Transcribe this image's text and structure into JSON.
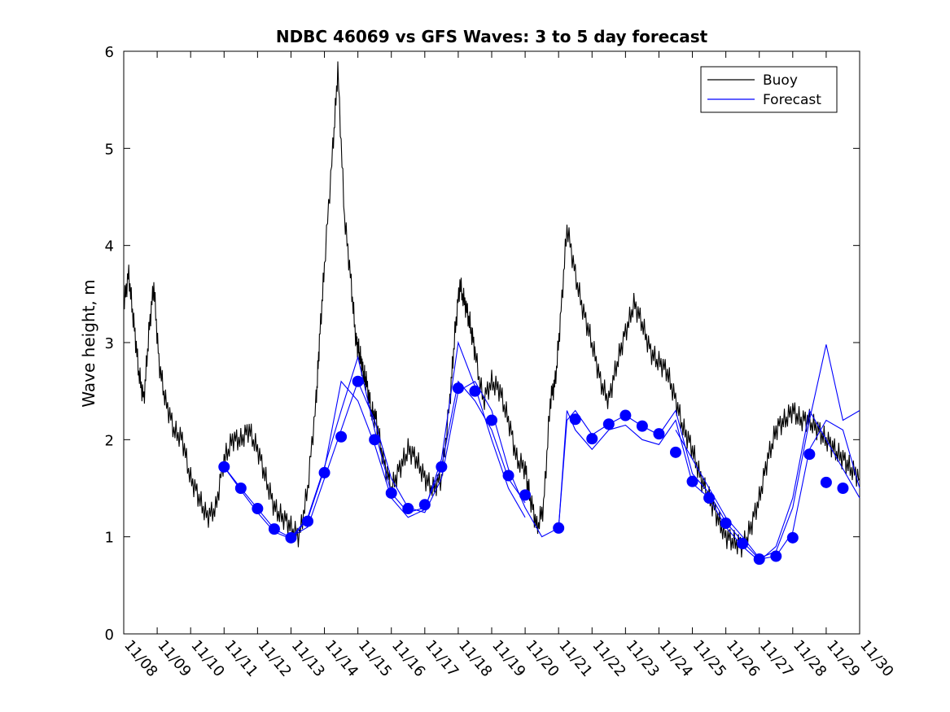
{
  "chart_data": {
    "type": "line",
    "title": "NDBC 46069 vs GFS Waves: 3 to 5 day forecast",
    "xlabel": "",
    "ylabel": "Wave height, m",
    "xlim": [
      0,
      22
    ],
    "ylim": [
      0,
      6
    ],
    "grid": false,
    "legend_location": "top-right",
    "x_tick_labels": [
      "11/08",
      "11/09",
      "11/10",
      "11/11",
      "11/12",
      "11/13",
      "11/14",
      "11/15",
      "11/16",
      "11/17",
      "11/18",
      "11/19",
      "11/20",
      "11/21",
      "11/22",
      "11/23",
      "11/24",
      "11/25",
      "11/26",
      "11/27",
      "11/28",
      "11/29",
      "11/30"
    ],
    "y_ticks": [
      0,
      1,
      2,
      3,
      4,
      5,
      6
    ],
    "colors": {
      "buoy": "#000000",
      "forecast": "#0000ff"
    },
    "series": [
      {
        "name": "Buoy",
        "x": [
          0.0,
          0.15,
          0.3,
          0.45,
          0.6,
          0.75,
          0.9,
          1.05,
          1.25,
          1.5,
          1.75,
          2.0,
          2.25,
          2.5,
          2.75,
          3.0,
          3.25,
          3.5,
          3.75,
          4.0,
          4.25,
          4.5,
          4.75,
          5.0,
          5.25,
          5.5,
          5.75,
          5.85,
          6.0,
          6.25,
          6.4,
          6.6,
          6.8,
          6.95,
          7.05,
          7.15,
          7.25,
          7.4,
          7.55,
          7.75,
          8.0,
          8.25,
          8.5,
          8.75,
          9.0,
          9.25,
          9.5,
          9.75,
          9.9,
          10.05,
          10.2,
          10.35,
          10.5,
          10.75,
          11.0,
          11.25,
          11.5,
          11.75,
          12.0,
          12.15,
          12.35,
          12.55,
          12.75,
          12.9,
          13.05,
          13.25,
          13.5,
          13.75,
          14.0,
          14.25,
          14.5,
          14.75,
          15.0,
          15.25,
          15.5,
          15.75,
          16.0,
          16.25,
          16.5,
          16.75,
          17.0,
          17.25,
          17.5,
          17.75,
          18.0,
          18.25,
          18.5,
          18.75,
          19.0,
          19.25,
          19.5,
          19.75,
          20.0,
          20.25,
          20.5,
          20.75,
          21.0,
          21.25,
          21.5,
          21.75,
          22.0
        ],
        "values": [
          3.4,
          3.7,
          3.2,
          2.7,
          2.4,
          3.1,
          3.6,
          2.8,
          2.4,
          2.1,
          2.0,
          1.6,
          1.4,
          1.2,
          1.3,
          1.8,
          2.0,
          2.0,
          2.1,
          1.9,
          1.6,
          1.3,
          1.2,
          1.1,
          1.0,
          1.5,
          2.4,
          3.0,
          3.8,
          5.0,
          5.8,
          4.3,
          3.6,
          3.0,
          2.9,
          2.7,
          2.6,
          2.3,
          2.2,
          1.8,
          1.5,
          1.7,
          1.9,
          1.8,
          1.6,
          1.5,
          1.6,
          2.4,
          3.1,
          3.6,
          3.4,
          3.2,
          2.9,
          2.4,
          2.6,
          2.5,
          2.2,
          1.8,
          1.7,
          1.4,
          1.1,
          1.3,
          2.4,
          2.6,
          3.2,
          4.2,
          3.7,
          3.3,
          3.0,
          2.6,
          2.4,
          2.8,
          3.1,
          3.4,
          3.2,
          2.9,
          2.8,
          2.7,
          2.4,
          2.1,
          1.9,
          1.6,
          1.4,
          1.2,
          1.0,
          0.95,
          0.9,
          1.1,
          1.4,
          1.8,
          2.1,
          2.2,
          2.3,
          2.2,
          2.2,
          2.1,
          2.0,
          1.9,
          1.8,
          1.7,
          1.6
        ]
      },
      {
        "name": "Forecast",
        "markers_x": [
          3.0,
          3.5,
          4.0,
          4.5,
          5.0,
          5.5,
          6.0,
          6.5,
          7.0,
          7.5,
          8.0,
          8.5,
          9.0,
          9.5,
          10.0,
          10.5,
          11.0,
          11.5,
          12.0,
          13.0,
          13.5,
          14.0,
          14.5,
          15.0,
          15.5,
          16.0,
          16.5,
          17.0,
          17.5,
          18.0,
          18.5,
          19.0,
          19.5,
          20.0,
          20.5,
          21.0,
          21.5
        ],
        "marker_values": [
          1.72,
          1.5,
          1.29,
          1.08,
          0.99,
          1.16,
          1.66,
          2.03,
          2.6,
          2.0,
          1.45,
          1.29,
          1.33,
          1.72,
          2.53,
          2.5,
          2.2,
          1.63,
          1.43,
          1.09,
          2.21,
          2.01,
          2.16,
          2.25,
          2.14,
          2.06,
          1.87,
          1.57,
          1.4,
          1.14,
          0.93,
          0.77,
          0.8,
          0.99,
          1.85,
          1.56,
          1.5
        ],
        "runs": [
          {
            "x": [
              3.0,
              3.5,
              4.0,
              4.5,
              5.0,
              5.5,
              6.0,
              6.5,
              7.0,
              7.5,
              8.0,
              8.5,
              9.0,
              9.5,
              10.0,
              10.5,
              11.0,
              11.5,
              12.0
            ],
            "values": [
              1.72,
              1.5,
              1.29,
              1.08,
              0.99,
              1.2,
              1.72,
              2.3,
              2.85,
              2.1,
              1.45,
              1.25,
              1.3,
              1.72,
              2.6,
              2.4,
              2.1,
              1.6,
              1.35
            ]
          },
          {
            "x": [
              3.0,
              3.5,
              4.0,
              4.5,
              5.0,
              5.5,
              6.0,
              6.5,
              7.0,
              7.5,
              8.0,
              8.5,
              9.0,
              9.5,
              10.0,
              10.5,
              11.0,
              11.5,
              12.0
            ],
            "values": [
              1.72,
              1.48,
              1.25,
              1.05,
              0.98,
              1.18,
              1.7,
              2.6,
              2.4,
              1.95,
              1.4,
              1.2,
              1.28,
              1.8,
              3.0,
              2.55,
              2.0,
              1.5,
              1.2
            ]
          },
          {
            "x": [
              5.0,
              5.5,
              6.0,
              6.5,
              7.0,
              7.5,
              8.0,
              8.5,
              9.0,
              9.5,
              10.0,
              10.5,
              11.0,
              11.5,
              12.0,
              12.5,
              13.0
            ],
            "values": [
              1.0,
              1.1,
              1.6,
              2.1,
              2.6,
              2.2,
              1.6,
              1.3,
              1.25,
              1.6,
              2.5,
              2.6,
              2.3,
              1.7,
              1.3,
              1.0,
              1.09
            ]
          },
          {
            "x": [
              13.0,
              13.25,
              13.5,
              14.0,
              14.5,
              15.0,
              15.5,
              16.0,
              16.5,
              17.0,
              17.5,
              18.0,
              18.5,
              19.0,
              19.5,
              20.0,
              20.5,
              21.0,
              21.5,
              22.0
            ],
            "values": [
              1.09,
              2.2,
              2.3,
              2.05,
              2.16,
              2.25,
              2.14,
              2.05,
              2.3,
              1.65,
              1.45,
              1.15,
              0.95,
              0.77,
              0.8,
              1.05,
              1.9,
              2.2,
              2.1,
              1.5
            ]
          },
          {
            "x": [
              13.0,
              13.25,
              13.5,
              14.0,
              14.5,
              15.0,
              15.5,
              16.0,
              16.5,
              17.0,
              17.5,
              18.0,
              18.5,
              19.0,
              19.5,
              20.0,
              20.5,
              21.0,
              21.5,
              22.0
            ],
            "values": [
              1.09,
              2.3,
              2.1,
              1.9,
              2.1,
              2.15,
              2.0,
              1.95,
              2.2,
              1.55,
              1.4,
              1.1,
              0.9,
              0.75,
              0.9,
              1.4,
              2.3,
              2.0,
              1.7,
              1.4
            ]
          },
          {
            "x": [
              16.5,
              17.0,
              17.5,
              18.0,
              18.5,
              19.0,
              19.5,
              20.0,
              20.5,
              21.0,
              21.5,
              22.0
            ],
            "values": [
              2.1,
              1.8,
              1.5,
              1.2,
              1.0,
              0.78,
              0.85,
              1.3,
              2.2,
              2.98,
              2.2,
              2.3
            ]
          }
        ]
      }
    ]
  }
}
